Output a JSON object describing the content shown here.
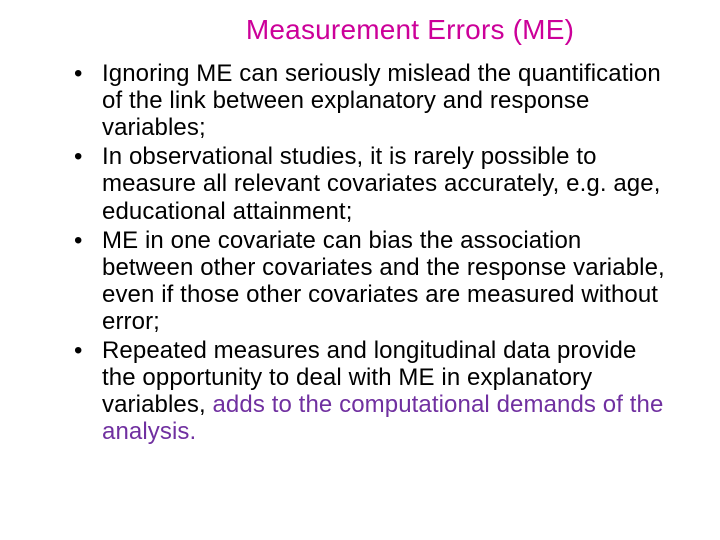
{
  "title": {
    "text": "Measurement Errors (ME)",
    "color": "#cc0099"
  },
  "body_color": "#000000",
  "tail_color": "#7030a0",
  "bullets": [
    {
      "main": "Ignoring ME can seriously mislead the quantification of the link between explanatory and response variables;",
      "tail": ""
    },
    {
      "main": "In observational studies, it is rarely possible to measure all relevant covariates accurately, e.g. age, educational attainment;",
      "tail": ""
    },
    {
      "main": "ME in one covariate can bias the association between other covariates and the response variable, even if those other covariates are measured without error;",
      "tail": ""
    },
    {
      "main": "Repeated measures and longitudinal data provide the opportunity to deal with ME in explanatory variables, ",
      "tail": "adds to the computational demands of the analysis."
    }
  ]
}
